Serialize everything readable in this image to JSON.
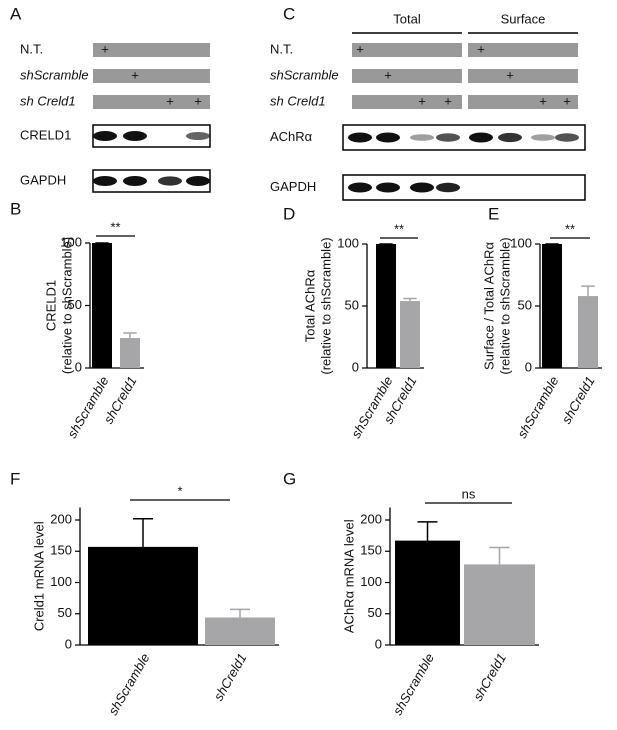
{
  "blots": [
    {
      "panel": "A",
      "rows": [
        {
          "label": "N.T.",
          "cells": [
            "+",
            null,
            null,
            null
          ]
        },
        {
          "label": "shScramble",
          "cells": [
            null,
            "+",
            null,
            null
          ]
        },
        {
          "label": "sh Creld1",
          "cells": [
            null,
            null,
            "+",
            "+"
          ]
        }
      ],
      "blots": [
        "CRELD1",
        "GAPDH"
      ]
    },
    {
      "panel": "C",
      "groups": [
        "Total",
        "Surface"
      ],
      "rows": [
        {
          "label": "N.T.",
          "cells": [
            "+",
            null,
            null,
            null,
            "+",
            null,
            null,
            null
          ]
        },
        {
          "label": "shScramble",
          "cells": [
            null,
            "+",
            null,
            null,
            null,
            "+",
            null,
            null
          ]
        },
        {
          "label": "sh Creld1",
          "cells": [
            null,
            null,
            "+",
            "+",
            null,
            null,
            "+",
            "+"
          ]
        }
      ],
      "blots": [
        "AChRα",
        "GAPDH"
      ]
    }
  ],
  "chart_data": [
    {
      "type": "bar",
      "panel": "B",
      "ylabel": [
        "CRELD1",
        "(relative to shScramble)"
      ],
      "categories": [
        "shScramble",
        "shCreld1"
      ],
      "values": [
        100,
        24
      ],
      "errors": [
        0,
        4
      ],
      "colors": [
        "#000000",
        "#a6a6a8"
      ],
      "ylim": [
        0,
        100
      ],
      "yticks": [
        0,
        50,
        100
      ],
      "significance": "**"
    },
    {
      "type": "bar",
      "panel": "D",
      "ylabel": [
        "Total AChRα",
        "(relative to shScramble)"
      ],
      "categories": [
        "shScramble",
        "shCreld1"
      ],
      "values": [
        100,
        54
      ],
      "errors": [
        0,
        2
      ],
      "colors": [
        "#000000",
        "#a6a6a8"
      ],
      "ylim": [
        0,
        100
      ],
      "yticks": [
        0,
        50,
        100
      ],
      "significance": "**"
    },
    {
      "type": "bar",
      "panel": "E",
      "ylabel": [
        "Surface / Total AChRα",
        "(relative to shScramble)"
      ],
      "categories": [
        "shScramble",
        "shCreld1"
      ],
      "values": [
        100,
        58
      ],
      "errors": [
        0,
        8
      ],
      "colors": [
        "#000000",
        "#a6a6a8"
      ],
      "ylim": [
        0,
        100
      ],
      "yticks": [
        0,
        50,
        100
      ],
      "significance": "**"
    },
    {
      "type": "bar",
      "panel": "F",
      "ylabel": [
        "Creld1 mRNA level"
      ],
      "categories": [
        "shScramble",
        "shCreld1"
      ],
      "values": [
        157,
        44
      ],
      "errors": [
        45,
        13
      ],
      "colors": [
        "#000000",
        "#a6a6a8"
      ],
      "ylim": [
        0,
        220
      ],
      "yticks": [
        0,
        50,
        100,
        150,
        200
      ],
      "significance": "*"
    },
    {
      "type": "bar",
      "panel": "G",
      "ylabel": [
        "AChRα mRNA level"
      ],
      "categories": [
        "shScramble",
        "shCreld1"
      ],
      "values": [
        167,
        129
      ],
      "errors": [
        30,
        27
      ],
      "colors": [
        "#000000",
        "#a6a6a8"
      ],
      "ylim": [
        0,
        220
      ],
      "yticks": [
        0,
        50,
        100,
        150,
        200
      ],
      "significance": "ns"
    }
  ]
}
